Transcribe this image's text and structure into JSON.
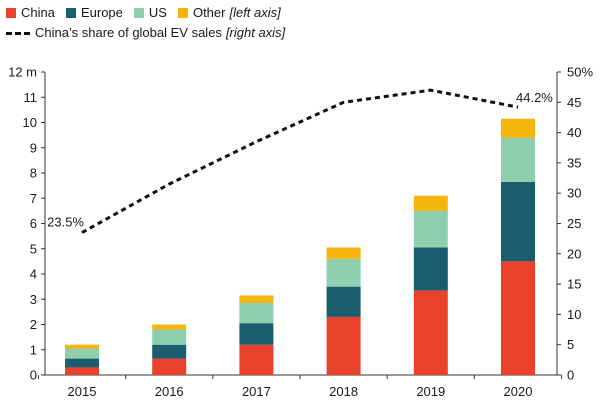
{
  "legend": {
    "items": [
      {
        "label": "China",
        "color": "#e8412c"
      },
      {
        "label": "Europe",
        "color": "#1b5c6f"
      },
      {
        "label": "US",
        "color": "#8fcfae"
      },
      {
        "label": "Other",
        "color": "#f6b40e",
        "note": "[left axis]"
      }
    ],
    "line": {
      "label": "China’s share of global EV sales",
      "note": "[right axis]"
    }
  },
  "chart_data": {
    "type": "bar",
    "stacked": true,
    "categories": [
      "2015",
      "2016",
      "2017",
      "2018",
      "2019",
      "2020"
    ],
    "series": [
      {
        "name": "China",
        "color": "#e8412c",
        "values": [
          0.3,
          0.65,
          1.2,
          2.3,
          3.35,
          4.5
        ]
      },
      {
        "name": "Europe",
        "color": "#1b5c6f",
        "values": [
          0.35,
          0.55,
          0.85,
          1.2,
          1.7,
          3.15
        ]
      },
      {
        "name": "US",
        "color": "#8fcfae",
        "values": [
          0.4,
          0.6,
          0.8,
          1.1,
          1.45,
          1.75
        ]
      },
      {
        "name": "Other",
        "color": "#f6b40e",
        "values": [
          0.15,
          0.2,
          0.3,
          0.45,
          0.6,
          0.75
        ]
      }
    ],
    "line": {
      "name": "China’s share of global EV sales",
      "axis": "right",
      "values": [
        23.5,
        31.5,
        38.5,
        45,
        47,
        44.2
      ],
      "labels": [
        "23.5%",
        "",
        "",
        "",
        "",
        "44.2%"
      ]
    },
    "left_axis": {
      "ylim": [
        0,
        12
      ],
      "ticks": [
        "0",
        "1",
        "2",
        "3",
        "4",
        "5",
        "6",
        "7",
        "8",
        "9",
        "10",
        "11",
        "12 m"
      ]
    },
    "right_axis": {
      "ylim": [
        0,
        50
      ],
      "ticks": [
        "0",
        "5",
        "10",
        "15",
        "20",
        "25",
        "30",
        "35",
        "40",
        "45",
        "50%"
      ]
    },
    "grid": false,
    "legend_position": "top-left"
  }
}
